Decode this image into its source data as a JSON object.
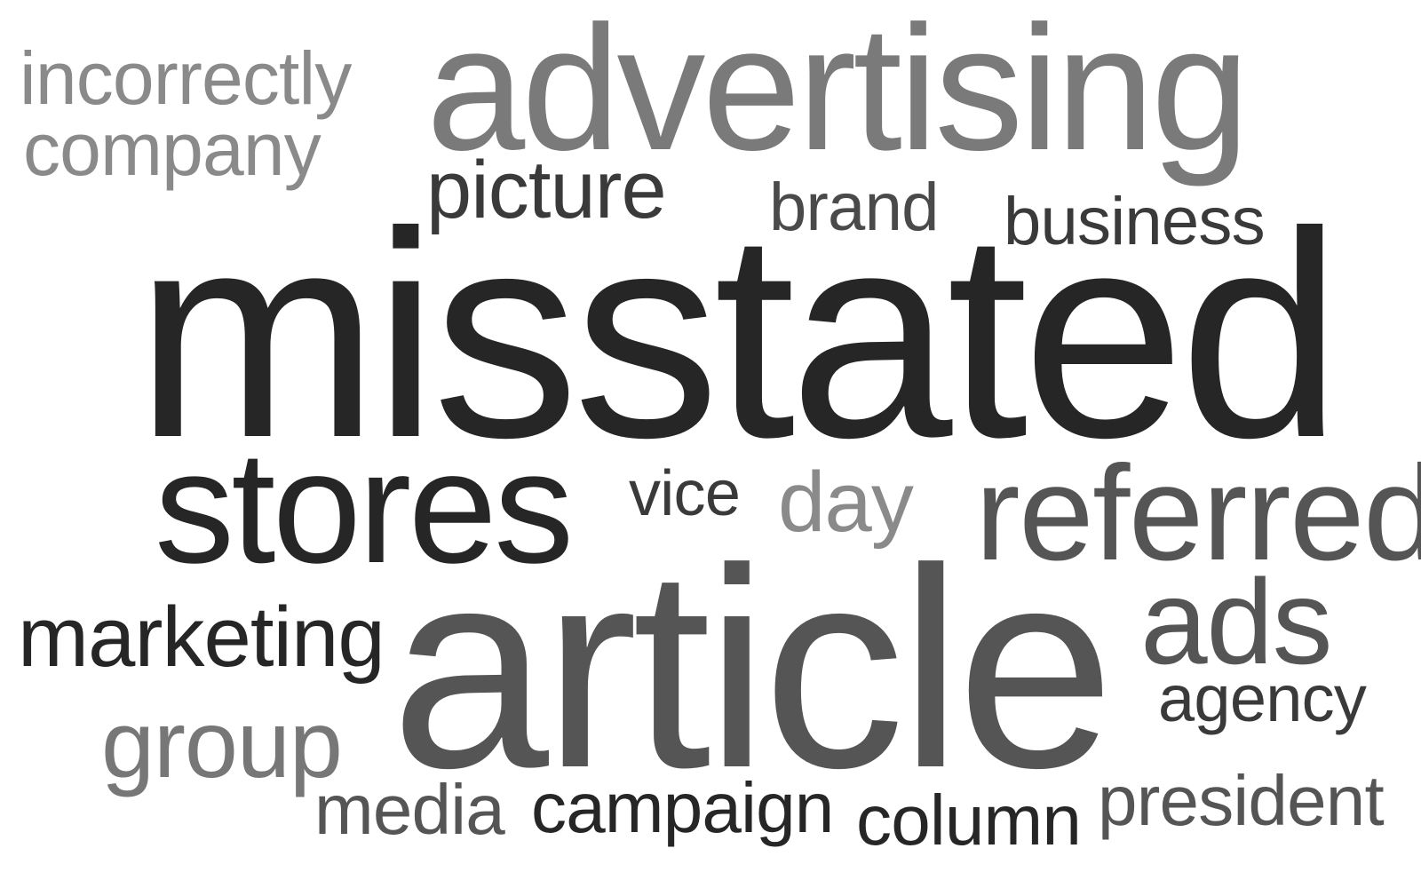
{
  "words": [
    {
      "id": "incorrectly",
      "text": "incorrectly",
      "color": "#8a8a8a"
    },
    {
      "id": "company",
      "text": "company",
      "color": "#8a8a8a"
    },
    {
      "id": "advertising",
      "text": "advertising",
      "color": "#7a7a7a"
    },
    {
      "id": "picture",
      "text": "picture",
      "color": "#3a3a3a"
    },
    {
      "id": "brand",
      "text": "brand",
      "color": "#4a4a4a"
    },
    {
      "id": "business",
      "text": "business",
      "color": "#3a3a3a"
    },
    {
      "id": "misstated",
      "text": "misstated",
      "color": "#262626"
    },
    {
      "id": "stores",
      "text": "stores",
      "color": "#262626"
    },
    {
      "id": "vice",
      "text": "vice",
      "color": "#3a3a3a"
    },
    {
      "id": "day",
      "text": "day",
      "color": "#8a8a8a"
    },
    {
      "id": "referred",
      "text": "referred",
      "color": "#555555"
    },
    {
      "id": "marketing",
      "text": "marketing",
      "color": "#262626"
    },
    {
      "id": "article",
      "text": "article",
      "color": "#555555"
    },
    {
      "id": "ads",
      "text": "ads",
      "color": "#555555"
    },
    {
      "id": "agency",
      "text": "agency",
      "color": "#3a3a3a"
    },
    {
      "id": "group",
      "text": "group",
      "color": "#777777"
    },
    {
      "id": "media",
      "text": "media",
      "color": "#555555"
    },
    {
      "id": "campaign",
      "text": "campaign",
      "color": "#262626"
    },
    {
      "id": "column",
      "text": "column",
      "color": "#262626"
    },
    {
      "id": "president",
      "text": "president",
      "color": "#555555"
    }
  ]
}
